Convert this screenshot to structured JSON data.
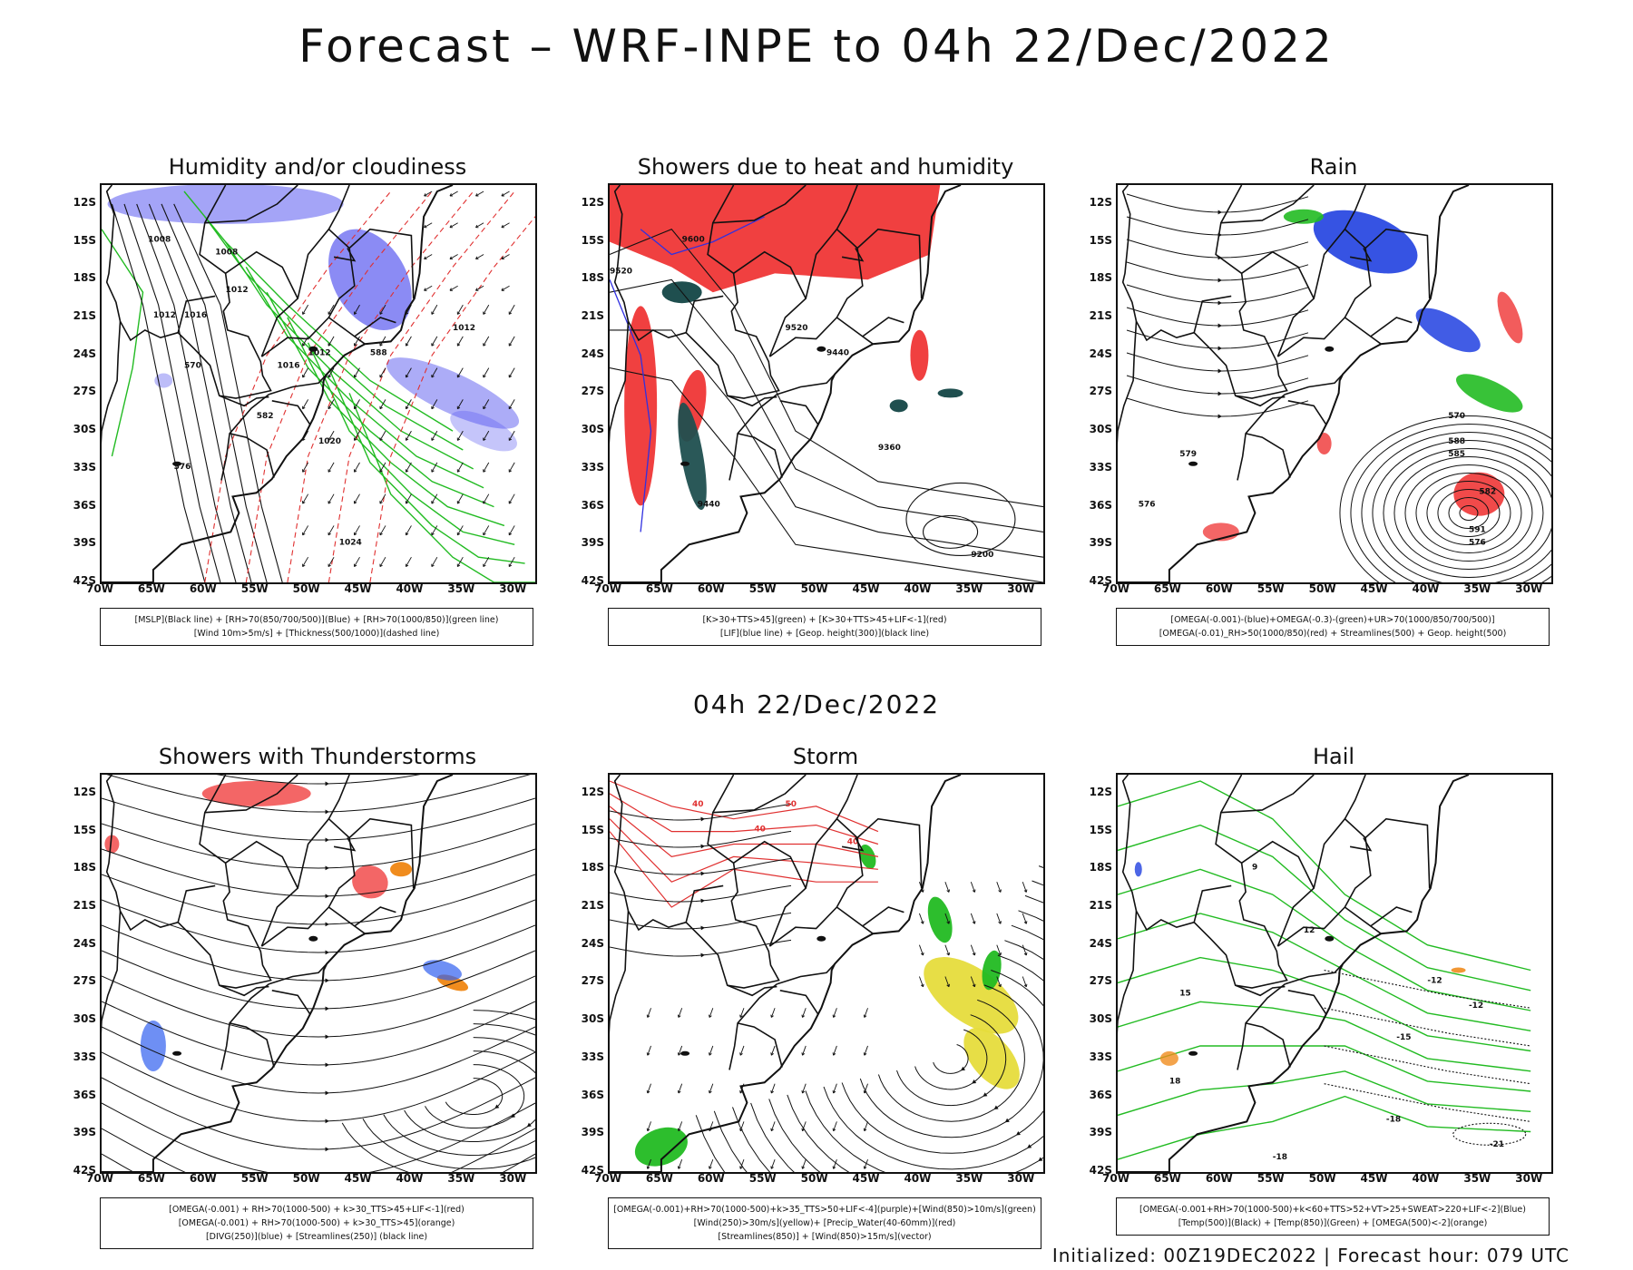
{
  "title": "Forecast – WRF-INPE to 04h 22/Dec/2022",
  "section_date": "04h 22/Dec/2022",
  "footer": "Initialized: 00Z19DEC2022 | Forecast hour: 079 UTC",
  "lat_ticks": [
    "12S",
    "15S",
    "18S",
    "21S",
    "24S",
    "27S",
    "30S",
    "33S",
    "36S",
    "39S",
    "42S"
  ],
  "lon_ticks": [
    "70W",
    "65W",
    "60W",
    "55W",
    "50W",
    "45W",
    "40W",
    "35W",
    "30W"
  ],
  "colors": {
    "blue_fill": "#5a5af0",
    "green_line": "#22bb22",
    "red_fill": "#f04040",
    "teal_fill": "#1f4f4f",
    "yellow_fill": "#e6dc3c",
    "orange_fill": "#f08c1e",
    "black_line": "#111111"
  },
  "panels": [
    {
      "title": "Humidity and/or cloudiness",
      "legend": [
        "[MSLP](Black line) + [RH>70(850/700/500)](Blue) + [RH>70(1000/850)](green line)",
        "[Wind 10m>5m/s] + [Thickness(500/1000)](dashed line)"
      ],
      "contour_labels": [
        "1008",
        "1008",
        "1012",
        "1016",
        "1012",
        "1016",
        "1012",
        "1020",
        "1024",
        "570",
        "576",
        "582",
        "588",
        "1012"
      ]
    },
    {
      "title": "Showers due to heat and humidity",
      "legend": [
        "[K>30+TTS>45](green) + [K>30+TTS>45+LIF<-1](red)",
        "[LIF](blue line) + [Geop. height(300)](black line)"
      ],
      "contour_labels": [
        "9520",
        "9600",
        "9440",
        "9360",
        "9200",
        "9520",
        "9440"
      ]
    },
    {
      "title": "Rain",
      "legend": [
        "[OMEGA(-0.001)-(blue)+OMEGA(-0.3)-(green)+UR>70(1000/850/700/500)]",
        "[OMEGA(-0.01)_RH>50(1000/850)(red) + Streamlines(500) + Geop. height(500)"
      ],
      "contour_labels": [
        "570",
        "576",
        "579",
        "582",
        "585",
        "588",
        "591",
        "576"
      ]
    },
    {
      "title": "Showers with Thunderstorms",
      "legend": [
        "[OMEGA(-0.001) + RH>70(1000-500) + k>30_TTS>45+LIF<-1](red)",
        "[OMEGA(-0.001) + RH>70(1000-500) + k>30_TTS>45](orange)",
        "[DIVG(250)](blue) + [Streamlines(250)] (black line)"
      ],
      "contour_labels": []
    },
    {
      "title": "Storm",
      "legend": [
        "[OMEGA(-0.001)+RH>70(1000-500)+k>35_TTS>50+LIF<-4](purple)+[Wind(850)>10m/s](green)",
        "[Wind(250)>30m/s](yellow)+ [Precip_Water(40-60mm)](red)",
        "[Streamlines(850)] + [Wind(850)>15m/s](vector)"
      ],
      "contour_labels": [
        "40",
        "40",
        "50",
        "40"
      ]
    },
    {
      "title": "Hail",
      "legend": [
        "[OMEGA(-0.001+RH>70(1000-500)+k<60+TTS>52+VT>25+SWEAT>220+LIF<-2](Blue)",
        "[Temp(500)](Black) + [Temp(850)](Green) + [OMEGA(500)<-2](orange)"
      ],
      "contour_labels": [
        "-12",
        "-12",
        "-15",
        "-18",
        "-21",
        "-18",
        "18",
        "15",
        "12",
        "9"
      ]
    }
  ]
}
